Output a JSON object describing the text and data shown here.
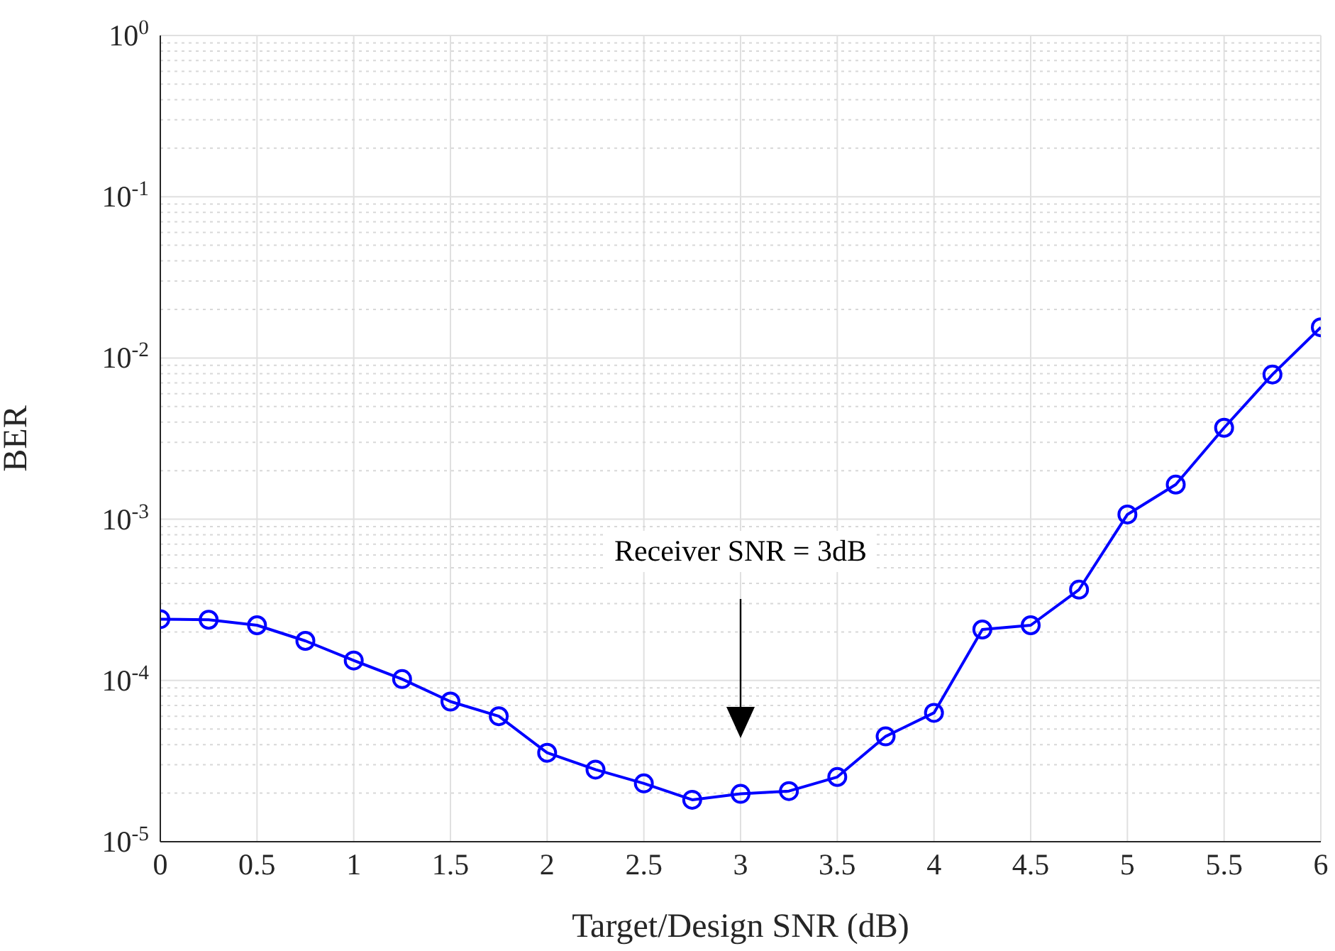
{
  "chart_data": {
    "type": "line",
    "xlabel": "Target/Design SNR (dB)",
    "ylabel": "BER",
    "x": [
      0,
      0.25,
      0.5,
      0.75,
      1,
      1.25,
      1.5,
      1.75,
      2,
      2.25,
      2.5,
      2.75,
      3,
      3.25,
      3.5,
      3.75,
      4,
      4.25,
      4.5,
      4.75,
      5,
      5.25,
      5.5,
      5.75,
      6
    ],
    "series": [
      {
        "color": "#0000ff",
        "values": [
          0.00024,
          0.000238,
          0.00022,
          0.000176,
          0.000133,
          0.000102,
          7.4e-05,
          6e-05,
          3.56e-05,
          2.8e-05,
          2.3e-05,
          1.82e-05,
          1.98e-05,
          2.06e-05,
          2.52e-05,
          4.5e-05,
          6.3e-05,
          0.000207,
          0.00022,
          0.000366,
          0.00107,
          0.00164,
          0.00369,
          0.0079,
          0.0155
        ]
      }
    ],
    "xlim": [
      0,
      6
    ],
    "xticks": [
      0,
      0.5,
      1,
      1.5,
      2,
      2.5,
      3,
      3.5,
      4,
      4.5,
      5,
      5.5,
      6
    ],
    "ylim": [
      1e-05,
      1
    ],
    "yticks": [
      {
        "value": 1e-05,
        "label": "10$^{-5}$"
      },
      {
        "value": 0.0001,
        "label": "10$^{-4}$"
      },
      {
        "value": 0.001,
        "label": "10$^{-3}$"
      },
      {
        "value": 0.01,
        "label": "10$^{-2}$"
      },
      {
        "value": 0.1,
        "label": "10$^{-1}$"
      },
      {
        "value": 1,
        "label": "10$^{0}$"
      }
    ],
    "log": "y",
    "grid": true,
    "marker": "circle",
    "line_style": "solid",
    "annotations": [
      "Receiver SNR = 3dB"
    ]
  }
}
